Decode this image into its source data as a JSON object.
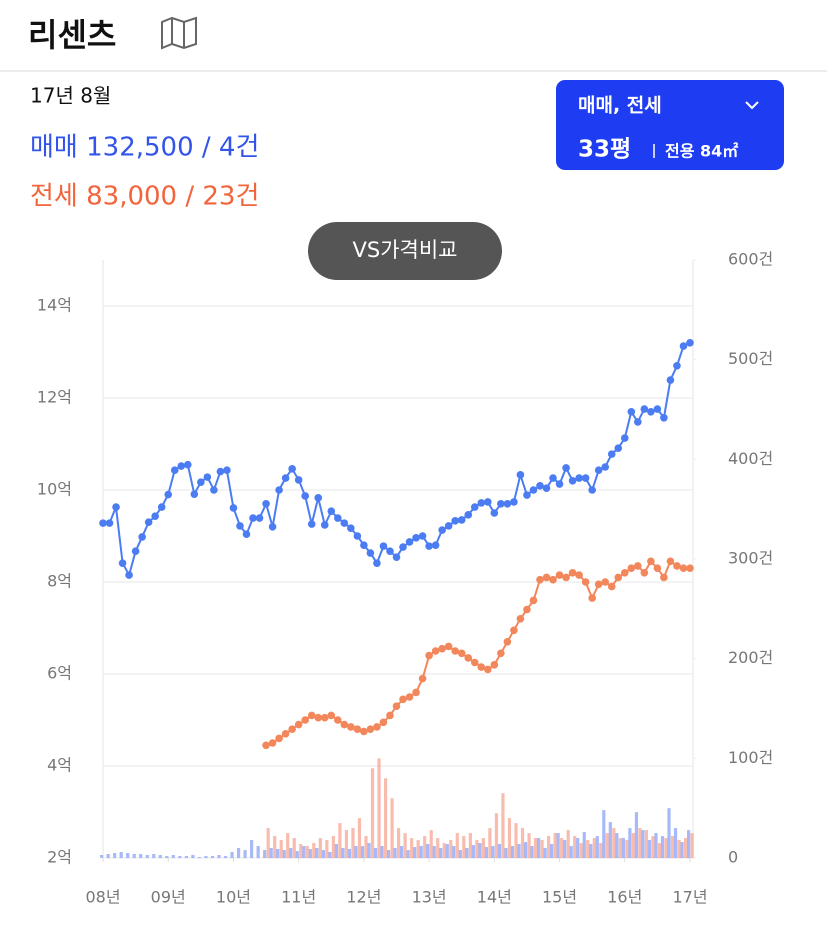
{
  "header": {
    "title": "리센츠"
  },
  "summary": {
    "date": "17년 8월",
    "sale": "매매 132,500 / 4건",
    "jeonse": "전세 83,000 / 23건"
  },
  "filter": {
    "type": "매매, 전세",
    "size": "33평",
    "area": "전용 84㎡"
  },
  "compare_button": "VS가격비교",
  "chart_data": {
    "type": "line",
    "grid": true,
    "x": [
      8.0,
      8.1,
      8.2,
      8.3,
      8.4,
      8.5,
      8.6,
      8.7,
      8.8,
      8.9,
      9.0,
      9.1,
      9.2,
      9.3,
      9.4,
      9.5,
      9.6,
      9.7,
      9.8,
      9.9,
      10.0,
      10.1,
      10.2,
      10.3,
      10.4,
      10.5,
      10.6,
      10.7,
      10.8,
      10.9,
      11.0,
      11.1,
      11.2,
      11.3,
      11.4,
      11.5,
      11.6,
      11.7,
      11.8,
      11.9,
      12.0,
      12.1,
      12.2,
      12.3,
      12.4,
      12.5,
      12.6,
      12.7,
      12.8,
      12.9,
      13.0,
      13.1,
      13.2,
      13.3,
      13.4,
      13.5,
      13.6,
      13.7,
      13.8,
      13.9,
      14.0,
      14.1,
      14.2,
      14.3,
      14.4,
      14.5,
      14.6,
      14.7,
      14.8,
      14.9,
      15.0,
      15.1,
      15.2,
      15.3,
      15.4,
      15.5,
      15.6,
      15.7,
      15.8,
      15.9,
      16.0,
      16.1,
      16.2,
      16.3,
      16.4,
      16.5,
      16.6,
      16.7,
      16.8,
      16.9,
      17.0
    ],
    "xlim": [
      8,
      17
    ],
    "xticks": [
      {
        "value": 8,
        "label": "08년"
      },
      {
        "value": 9,
        "label": "09년"
      },
      {
        "value": 10,
        "label": "10년"
      },
      {
        "value": 11,
        "label": "11년"
      },
      {
        "value": 12,
        "label": "12년"
      },
      {
        "value": 13,
        "label": "13년"
      },
      {
        "value": 14,
        "label": "14년"
      },
      {
        "value": 15,
        "label": "15년"
      },
      {
        "value": 16,
        "label": "16년"
      },
      {
        "value": 17,
        "label": "17년"
      }
    ],
    "ylim": [
      2,
      15
    ],
    "yticks": [
      {
        "value": 2,
        "label": "2억"
      },
      {
        "value": 4,
        "label": "4억"
      },
      {
        "value": 6,
        "label": "6억"
      },
      {
        "value": 8,
        "label": "8억"
      },
      {
        "value": 10,
        "label": "10억"
      },
      {
        "value": 12,
        "label": "12억"
      },
      {
        "value": 14,
        "label": "14억"
      }
    ],
    "y2lim": [
      0,
      600
    ],
    "y2ticks": [
      0,
      {
        "value": 100,
        "label": "100건"
      },
      {
        "value": 200,
        "label": "200건"
      },
      {
        "value": 300,
        "label": "300건"
      },
      {
        "value": 400,
        "label": "400건"
      },
      {
        "value": 500,
        "label": "500건"
      },
      {
        "value": 600,
        "label": "600건"
      }
    ],
    "series": [
      {
        "type": "bar",
        "axis": "y2",
        "color": "#f6a593",
        "values": [
          null,
          null,
          null,
          null,
          null,
          null,
          null,
          null,
          null,
          null,
          null,
          null,
          null,
          null,
          null,
          null,
          null,
          null,
          null,
          null,
          null,
          null,
          null,
          null,
          null,
          30,
          22,
          18,
          25,
          20,
          14,
          12,
          15,
          20,
          18,
          22,
          35,
          28,
          30,
          40,
          22,
          90,
          100,
          80,
          60,
          30,
          25,
          20,
          18,
          22,
          28,
          20,
          15,
          18,
          25,
          22,
          25,
          18,
          20,
          30,
          45,
          65,
          40,
          35,
          30,
          25,
          20,
          18,
          22,
          25,
          20,
          28,
          22,
          15,
          18,
          20,
          15,
          25,
          30,
          20,
          18,
          25,
          30,
          28,
          22,
          15,
          20,
          22,
          18,
          20,
          25
        ]
      },
      {
        "type": "bar",
        "axis": "y2",
        "color": "#8aa2f5",
        "values": [
          3,
          4,
          5,
          6,
          5,
          4,
          4,
          3,
          4,
          3,
          2,
          3,
          2,
          2,
          3,
          1,
          2,
          2,
          3,
          2,
          6,
          10,
          8,
          18,
          12,
          8,
          10,
          9,
          8,
          10,
          7,
          12,
          9,
          10,
          8,
          6,
          14,
          10,
          9,
          12,
          12,
          15,
          10,
          12,
          8,
          10,
          12,
          8,
          11,
          12,
          14,
          12,
          10,
          14,
          12,
          8,
          10,
          13,
          15,
          11,
          12,
          14,
          10,
          12,
          14,
          16,
          12,
          20,
          10,
          14,
          25,
          18,
          12,
          20,
          26,
          14,
          22,
          48,
          36,
          25,
          20,
          30,
          46,
          28,
          18,
          25,
          22,
          50,
          30,
          16,
          28
        ]
      },
      {
        "type": "line",
        "color": "#4b7cf2",
        "values": [
          9.28,
          9.28,
          9.63,
          8.41,
          8.15,
          8.67,
          8.98,
          9.3,
          9.43,
          9.63,
          9.9,
          10.43,
          10.52,
          10.55,
          9.91,
          10.17,
          10.28,
          10.0,
          10.4,
          10.43,
          9.61,
          9.22,
          9.04,
          9.39,
          9.39,
          9.7,
          9.2,
          10.0,
          10.26,
          10.46,
          10.22,
          9.87,
          9.26,
          9.83,
          9.24,
          9.54,
          9.39,
          9.28,
          9.17,
          9.0,
          8.8,
          8.63,
          8.41,
          8.78,
          8.67,
          8.54,
          8.76,
          8.87,
          8.96,
          9.0,
          8.78,
          8.8,
          9.13,
          9.22,
          9.33,
          9.35,
          9.46,
          9.63,
          9.72,
          9.74,
          9.5,
          9.7,
          9.7,
          9.74,
          10.33,
          9.89,
          10.0,
          10.09,
          10.04,
          10.26,
          10.13,
          10.48,
          10.2,
          10.26,
          10.26,
          10.0,
          10.43,
          10.5,
          10.78,
          10.91,
          11.13,
          11.7,
          11.48,
          11.76,
          11.7,
          11.76,
          11.57,
          12.39,
          12.7,
          13.13,
          13.2
        ]
      },
      {
        "type": "line",
        "color": "#f2875b",
        "values": [
          null,
          null,
          null,
          null,
          null,
          null,
          null,
          null,
          null,
          null,
          null,
          null,
          null,
          null,
          null,
          null,
          null,
          null,
          null,
          null,
          null,
          null,
          null,
          null,
          null,
          4.45,
          4.5,
          4.6,
          4.7,
          4.8,
          4.9,
          5.0,
          5.1,
          5.05,
          5.05,
          5.1,
          5.0,
          4.9,
          4.85,
          4.8,
          4.75,
          4.8,
          4.85,
          4.95,
          5.1,
          5.3,
          5.45,
          5.5,
          5.6,
          5.9,
          6.4,
          6.5,
          6.55,
          6.6,
          6.5,
          6.45,
          6.35,
          6.25,
          6.15,
          6.1,
          6.2,
          6.45,
          6.7,
          6.95,
          7.2,
          7.4,
          7.6,
          8.05,
          8.1,
          8.05,
          8.15,
          8.1,
          8.2,
          8.15,
          8.0,
          7.65,
          7.95,
          8.0,
          7.9,
          8.1,
          8.2,
          8.3,
          8.35,
          8.2,
          8.45,
          8.3,
          8.1,
          8.45,
          8.35,
          8.3,
          8.3
        ]
      }
    ]
  }
}
